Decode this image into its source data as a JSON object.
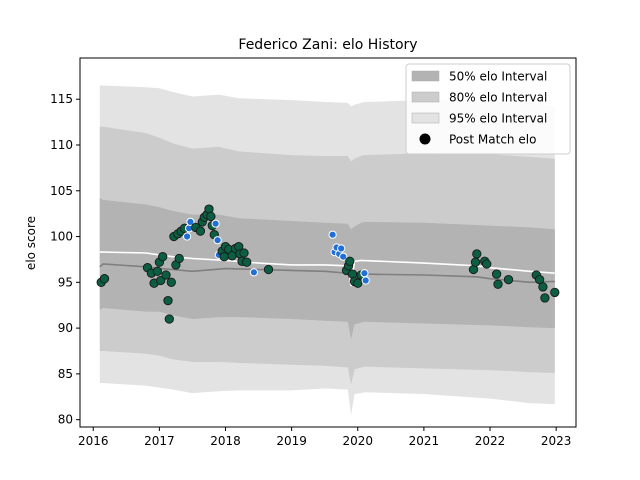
{
  "chart_data": {
    "type": "scatter",
    "title": "Federico Zani: elo History",
    "xlabel": "",
    "ylabel": "elo score",
    "xlim": [
      2015.8,
      2023.3
    ],
    "ylim": [
      79.2,
      119.5
    ],
    "x_ticks": [
      "2016",
      "2017",
      "2018",
      "2019",
      "2020",
      "2021",
      "2022",
      "2023"
    ],
    "y_ticks": [
      "80",
      "85",
      "90",
      "95",
      "100",
      "105",
      "110",
      "115"
    ],
    "legend_position": "top-right",
    "legend": [
      {
        "label": "50% elo Interval",
        "kind": "band50"
      },
      {
        "label": "80% elo Interval",
        "kind": "band80"
      },
      {
        "label": "95% elo Interval",
        "kind": "band95"
      },
      {
        "label": "Post Match elo",
        "kind": "marker"
      }
    ],
    "colors": {
      "band50": "#b3b3b3",
      "band80": "#cccccc",
      "band95": "#e3e3e3",
      "median_line": "#7f7f7f",
      "mean_line": "#ffffff",
      "marker_main": "#0b5e42",
      "marker_highlight": "#1f6fd6"
    },
    "bands": {
      "x": [
        2016.1,
        2016.15,
        2016.8,
        2017.0,
        2017.2,
        2017.5,
        2017.9,
        2018.2,
        2019.0,
        2019.5,
        2019.85,
        2019.9,
        2019.95,
        2020.05,
        2020.1,
        2021.0,
        2022.0,
        2022.6,
        2022.98
      ],
      "p95_hi": [
        116.5,
        116.5,
        116.3,
        116.2,
        115.8,
        115.3,
        115.5,
        115.1,
        114.9,
        114.7,
        114.6,
        114.2,
        114.4,
        114.6,
        114.7,
        114.9,
        114.8,
        114.6,
        114.3
      ],
      "p95_lo": [
        84.0,
        84.0,
        83.7,
        83.5,
        83.3,
        82.9,
        83.1,
        83.2,
        83.2,
        83.4,
        83.3,
        80.5,
        82.8,
        82.9,
        83.0,
        82.8,
        82.3,
        81.8,
        81.7
      ],
      "p80_hi": [
        112.0,
        112.0,
        111.3,
        110.8,
        110.2,
        109.6,
        109.8,
        109.3,
        108.9,
        108.8,
        108.8,
        108.2,
        108.5,
        108.8,
        108.9,
        109.1,
        109.0,
        108.7,
        108.5
      ],
      "p80_lo": [
        87.5,
        87.5,
        87.2,
        87.0,
        86.6,
        86.3,
        86.3,
        86.2,
        86.0,
        85.9,
        85.7,
        83.8,
        85.5,
        85.7,
        85.8,
        85.6,
        85.4,
        85.2,
        85.1
      ],
      "p50_hi": [
        104.2,
        104.0,
        103.5,
        103.2,
        102.8,
        102.4,
        102.4,
        102.0,
        101.7,
        101.5,
        101.4,
        100.8,
        101.1,
        101.5,
        101.6,
        101.5,
        101.2,
        101.0,
        100.8
      ],
      "p50_lo": [
        92.0,
        92.2,
        91.8,
        91.8,
        91.4,
        91.0,
        91.2,
        91.2,
        91.0,
        90.8,
        90.7,
        88.8,
        90.4,
        90.6,
        90.7,
        90.5,
        90.3,
        90.1,
        90.0
      ]
    },
    "median_line": {
      "x": [
        2016.1,
        2016.15,
        2016.8,
        2017.0,
        2017.2,
        2017.5,
        2018.0,
        2018.5,
        2019.0,
        2019.5,
        2019.85,
        2019.9,
        2019.95,
        2020.05,
        2021.0,
        2021.8,
        2022.0,
        2022.6,
        2022.98
      ],
      "y": [
        96.7,
        97.0,
        96.7,
        96.5,
        96.4,
        96.2,
        96.5,
        96.4,
        96.3,
        96.2,
        96.0,
        94.8,
        95.6,
        95.9,
        95.8,
        95.6,
        95.4,
        95.0,
        95.1
      ]
    },
    "mean_line": {
      "x": [
        2016.1,
        2016.15,
        2016.8,
        2017.0,
        2017.2,
        2017.5,
        2018.0,
        2018.5,
        2019.0,
        2019.5,
        2019.85,
        2019.9,
        2019.95,
        2020.05,
        2021.0,
        2021.8,
        2022.0,
        2022.6,
        2022.98
      ],
      "y": [
        98.3,
        98.3,
        98.2,
        98.0,
        97.8,
        97.6,
        97.4,
        97.1,
        96.9,
        96.9,
        96.8,
        94.6,
        97.3,
        97.4,
        97.1,
        96.8,
        96.6,
        96.2,
        96.0
      ]
    },
    "points": [
      {
        "x": 2016.12,
        "y": 95.0,
        "h": 0
      },
      {
        "x": 2016.17,
        "y": 95.4,
        "h": 0
      },
      {
        "x": 2016.82,
        "y": 96.6,
        "h": 0
      },
      {
        "x": 2016.88,
        "y": 96.0,
        "h": 0
      },
      {
        "x": 2016.92,
        "y": 94.9,
        "h": 0
      },
      {
        "x": 2016.97,
        "y": 96.2,
        "h": 0
      },
      {
        "x": 2017.0,
        "y": 97.2,
        "h": 0
      },
      {
        "x": 2017.02,
        "y": 95.2,
        "h": 0
      },
      {
        "x": 2017.05,
        "y": 97.8,
        "h": 0
      },
      {
        "x": 2017.1,
        "y": 95.8,
        "h": 0
      },
      {
        "x": 2017.13,
        "y": 93.0,
        "h": 0
      },
      {
        "x": 2017.15,
        "y": 91.0,
        "h": 0
      },
      {
        "x": 2017.18,
        "y": 95.0,
        "h": 0
      },
      {
        "x": 2017.25,
        "y": 96.9,
        "h": 0
      },
      {
        "x": 2017.3,
        "y": 97.6,
        "h": 0
      },
      {
        "x": 2017.22,
        "y": 100.0,
        "h": 0
      },
      {
        "x": 2017.28,
        "y": 100.3,
        "h": 0
      },
      {
        "x": 2017.33,
        "y": 100.6,
        "h": 0
      },
      {
        "x": 2017.38,
        "y": 100.9,
        "h": 0
      },
      {
        "x": 2017.42,
        "y": 100.0,
        "h": 1
      },
      {
        "x": 2017.45,
        "y": 100.9,
        "h": 1
      },
      {
        "x": 2017.47,
        "y": 101.6,
        "h": 1
      },
      {
        "x": 2017.55,
        "y": 101.0,
        "h": 0
      },
      {
        "x": 2017.62,
        "y": 100.6,
        "h": 0
      },
      {
        "x": 2017.65,
        "y": 101.6,
        "h": 0
      },
      {
        "x": 2017.68,
        "y": 102.1,
        "h": 0
      },
      {
        "x": 2017.72,
        "y": 102.4,
        "h": 0
      },
      {
        "x": 2017.75,
        "y": 103.0,
        "h": 0
      },
      {
        "x": 2017.78,
        "y": 102.2,
        "h": 0
      },
      {
        "x": 2017.8,
        "y": 101.2,
        "h": 0
      },
      {
        "x": 2017.83,
        "y": 100.2,
        "h": 0
      },
      {
        "x": 2017.85,
        "y": 101.4,
        "h": 1
      },
      {
        "x": 2017.88,
        "y": 99.6,
        "h": 1
      },
      {
        "x": 2017.9,
        "y": 98.0,
        "h": 1
      },
      {
        "x": 2017.95,
        "y": 98.4,
        "h": 0
      },
      {
        "x": 2017.98,
        "y": 97.8,
        "h": 0
      },
      {
        "x": 2018.0,
        "y": 98.9,
        "h": 0
      },
      {
        "x": 2018.05,
        "y": 98.6,
        "h": 0
      },
      {
        "x": 2018.1,
        "y": 97.9,
        "h": 0
      },
      {
        "x": 2018.15,
        "y": 98.7,
        "h": 0
      },
      {
        "x": 2018.2,
        "y": 98.9,
        "h": 0
      },
      {
        "x": 2018.22,
        "y": 98.1,
        "h": 0
      },
      {
        "x": 2018.25,
        "y": 97.3,
        "h": 0
      },
      {
        "x": 2018.28,
        "y": 98.2,
        "h": 0
      },
      {
        "x": 2018.32,
        "y": 97.2,
        "h": 0
      },
      {
        "x": 2018.43,
        "y": 96.1,
        "h": 1
      },
      {
        "x": 2018.65,
        "y": 96.4,
        "h": 0
      },
      {
        "x": 2019.62,
        "y": 100.2,
        "h": 1
      },
      {
        "x": 2019.65,
        "y": 98.3,
        "h": 1
      },
      {
        "x": 2019.68,
        "y": 98.8,
        "h": 1
      },
      {
        "x": 2019.72,
        "y": 98.1,
        "h": 1
      },
      {
        "x": 2019.75,
        "y": 98.7,
        "h": 1
      },
      {
        "x": 2019.78,
        "y": 97.8,
        "h": 1
      },
      {
        "x": 2019.83,
        "y": 96.3,
        "h": 0
      },
      {
        "x": 2019.86,
        "y": 96.8,
        "h": 0
      },
      {
        "x": 2019.88,
        "y": 97.3,
        "h": 0
      },
      {
        "x": 2019.92,
        "y": 95.9,
        "h": 0
      },
      {
        "x": 2019.95,
        "y": 95.1,
        "h": 0
      },
      {
        "x": 2020.0,
        "y": 94.9,
        "h": 0
      },
      {
        "x": 2020.05,
        "y": 95.8,
        "h": 0
      },
      {
        "x": 2020.1,
        "y": 96.0,
        "h": 1
      },
      {
        "x": 2020.12,
        "y": 95.2,
        "h": 1
      },
      {
        "x": 2021.75,
        "y": 96.4,
        "h": 0
      },
      {
        "x": 2021.78,
        "y": 97.2,
        "h": 0
      },
      {
        "x": 2021.8,
        "y": 98.1,
        "h": 0
      },
      {
        "x": 2021.92,
        "y": 97.3,
        "h": 0
      },
      {
        "x": 2021.95,
        "y": 97.0,
        "h": 0
      },
      {
        "x": 2022.1,
        "y": 95.9,
        "h": 0
      },
      {
        "x": 2022.12,
        "y": 94.8,
        "h": 0
      },
      {
        "x": 2022.28,
        "y": 95.3,
        "h": 0
      },
      {
        "x": 2022.7,
        "y": 95.8,
        "h": 0
      },
      {
        "x": 2022.75,
        "y": 95.3,
        "h": 0
      },
      {
        "x": 2022.8,
        "y": 94.5,
        "h": 0
      },
      {
        "x": 2022.83,
        "y": 93.3,
        "h": 0
      },
      {
        "x": 2022.98,
        "y": 93.9,
        "h": 0
      }
    ]
  }
}
